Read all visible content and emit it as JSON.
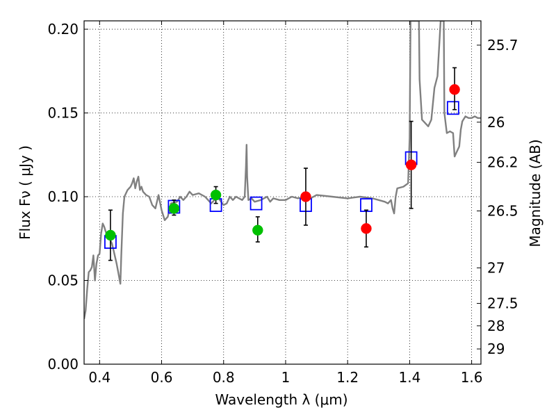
{
  "chart_data": {
    "type": "scatter",
    "xlabel": "Wavelength  λ (μm)",
    "ylabel": "Flux  Fν  ( μJy )",
    "ylabel_right": "Magnitude (AB)",
    "xlim": [
      0.35,
      1.63
    ],
    "ylim": [
      0.0,
      0.205
    ],
    "grid": true,
    "x_ticks": [
      0.4,
      0.6,
      0.8,
      1.0,
      1.2,
      1.4,
      1.6
    ],
    "x_tick_labels": [
      "0.4",
      "0.6",
      "0.8",
      "1",
      "1.2",
      "1.4",
      "1.6"
    ],
    "y_ticks": [
      0.0,
      0.05,
      0.1,
      0.15,
      0.2
    ],
    "y_tick_labels": [
      "0.00",
      "0.05",
      "0.10",
      "0.15",
      "0.20"
    ],
    "right_ticks": [
      {
        "flux": 0.1905,
        "label": "25.7"
      },
      {
        "flux": 0.1445,
        "label": "26"
      },
      {
        "flux": 0.1205,
        "label": "26.2"
      },
      {
        "flux": 0.0915,
        "label": "26.5"
      },
      {
        "flux": 0.0575,
        "label": "27"
      },
      {
        "flux": 0.0363,
        "label": "27.5"
      },
      {
        "flux": 0.0229,
        "label": "28"
      },
      {
        "flux": 0.0091,
        "label": "29"
      }
    ],
    "series": [
      {
        "style": "line",
        "color": "#808080",
        "points": [
          [
            0.35,
            0.027
          ],
          [
            0.355,
            0.032
          ],
          [
            0.36,
            0.045
          ],
          [
            0.365,
            0.055
          ],
          [
            0.37,
            0.056
          ],
          [
            0.375,
            0.058
          ],
          [
            0.38,
            0.065
          ],
          [
            0.385,
            0.05
          ],
          [
            0.39,
            0.06
          ],
          [
            0.395,
            0.065
          ],
          [
            0.4,
            0.066
          ],
          [
            0.405,
            0.078
          ],
          [
            0.41,
            0.084
          ],
          [
            0.415,
            0.082
          ],
          [
            0.42,
            0.079
          ],
          [
            0.43,
            0.076
          ],
          [
            0.44,
            0.072
          ],
          [
            0.445,
            0.068
          ],
          [
            0.45,
            0.064
          ],
          [
            0.455,
            0.06
          ],
          [
            0.46,
            0.055
          ],
          [
            0.465,
            0.05
          ],
          [
            0.467,
            0.048
          ],
          [
            0.47,
            0.065
          ],
          [
            0.475,
            0.09
          ],
          [
            0.48,
            0.1
          ],
          [
            0.49,
            0.104
          ],
          [
            0.5,
            0.106
          ],
          [
            0.505,
            0.108
          ],
          [
            0.51,
            0.111
          ],
          [
            0.515,
            0.105
          ],
          [
            0.52,
            0.109
          ],
          [
            0.525,
            0.112
          ],
          [
            0.53,
            0.104
          ],
          [
            0.535,
            0.106
          ],
          [
            0.54,
            0.103
          ],
          [
            0.55,
            0.101
          ],
          [
            0.56,
            0.1
          ],
          [
            0.57,
            0.095
          ],
          [
            0.58,
            0.093
          ],
          [
            0.59,
            0.101
          ],
          [
            0.6,
            0.092
          ],
          [
            0.61,
            0.086
          ],
          [
            0.62,
            0.088
          ],
          [
            0.63,
            0.096
          ],
          [
            0.65,
            0.097
          ],
          [
            0.66,
            0.1
          ],
          [
            0.67,
            0.098
          ],
          [
            0.68,
            0.1
          ],
          [
            0.69,
            0.103
          ],
          [
            0.7,
            0.101
          ],
          [
            0.72,
            0.102
          ],
          [
            0.74,
            0.1
          ],
          [
            0.76,
            0.096
          ],
          [
            0.78,
            0.1
          ],
          [
            0.8,
            0.095
          ],
          [
            0.81,
            0.096
          ],
          [
            0.82,
            0.1
          ],
          [
            0.83,
            0.098
          ],
          [
            0.84,
            0.1
          ],
          [
            0.85,
            0.099
          ],
          [
            0.86,
            0.098
          ],
          [
            0.868,
            0.1
          ],
          [
            0.872,
            0.118
          ],
          [
            0.874,
            0.131
          ],
          [
            0.876,
            0.112
          ],
          [
            0.88,
            0.098
          ],
          [
            0.89,
            0.099
          ],
          [
            0.9,
            0.097
          ],
          [
            0.92,
            0.098
          ],
          [
            0.94,
            0.1
          ],
          [
            0.95,
            0.097
          ],
          [
            0.96,
            0.099
          ],
          [
            0.98,
            0.098
          ],
          [
            1.0,
            0.098
          ],
          [
            1.02,
            0.1
          ],
          [
            1.04,
            0.099
          ],
          [
            1.06,
            0.1
          ],
          [
            1.08,
            0.099
          ],
          [
            1.1,
            0.101
          ],
          [
            1.15,
            0.1
          ],
          [
            1.2,
            0.099
          ],
          [
            1.24,
            0.1
          ],
          [
            1.28,
            0.099
          ],
          [
            1.3,
            0.098
          ],
          [
            1.32,
            0.097
          ],
          [
            1.33,
            0.096
          ],
          [
            1.34,
            0.098
          ],
          [
            1.345,
            0.093
          ],
          [
            1.35,
            0.09
          ],
          [
            1.355,
            0.1
          ],
          [
            1.36,
            0.105
          ],
          [
            1.38,
            0.106
          ],
          [
            1.395,
            0.108
          ],
          [
            1.4,
            0.135
          ],
          [
            1.403,
            0.205
          ],
          [
            1.43,
            0.205
          ],
          [
            1.432,
            0.17
          ],
          [
            1.44,
            0.146
          ],
          [
            1.46,
            0.142
          ],
          [
            1.47,
            0.146
          ],
          [
            1.48,
            0.165
          ],
          [
            1.49,
            0.172
          ],
          [
            1.5,
            0.205
          ],
          [
            1.51,
            0.205
          ],
          [
            1.512,
            0.15
          ],
          [
            1.52,
            0.138
          ],
          [
            1.53,
            0.139
          ],
          [
            1.54,
            0.138
          ],
          [
            1.545,
            0.124
          ],
          [
            1.55,
            0.126
          ],
          [
            1.56,
            0.13
          ],
          [
            1.565,
            0.14
          ],
          [
            1.57,
            0.145
          ],
          [
            1.58,
            0.148
          ],
          [
            1.59,
            0.147
          ],
          [
            1.6,
            0.147
          ],
          [
            1.61,
            0.148
          ],
          [
            1.62,
            0.147
          ],
          [
            1.63,
            0.147
          ]
        ]
      },
      {
        "style": "open-square",
        "color": "#0000ff",
        "points": [
          [
            0.435,
            0.073
          ],
          [
            0.64,
            0.094
          ],
          [
            0.775,
            0.095
          ],
          [
            0.905,
            0.096
          ],
          [
            1.065,
            0.095
          ],
          [
            1.26,
            0.095
          ],
          [
            1.405,
            0.123
          ],
          [
            1.54,
            0.153
          ]
        ]
      },
      {
        "style": "filled-circle",
        "color": "#00c000",
        "points": [
          [
            0.435,
            0.077,
            0.062,
            0.092
          ],
          [
            0.64,
            0.093,
            0.089,
            0.098
          ],
          [
            0.775,
            0.101,
            0.096,
            0.106
          ],
          [
            0.91,
            0.08,
            0.073,
            0.088
          ]
        ]
      },
      {
        "style": "filled-circle",
        "color": "#ff0000",
        "points": [
          [
            1.065,
            0.1,
            0.083,
            0.117
          ],
          [
            1.26,
            0.081,
            0.07,
            0.092
          ],
          [
            1.405,
            0.119,
            0.093,
            0.145
          ],
          [
            1.545,
            0.164,
            0.152,
            0.177
          ]
        ]
      }
    ]
  }
}
